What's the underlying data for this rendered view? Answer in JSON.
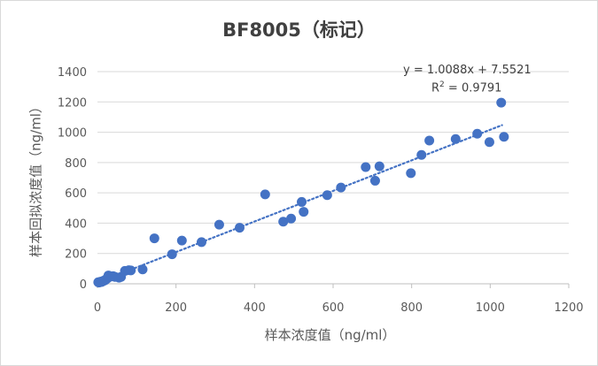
{
  "chart_data": {
    "type": "scatter",
    "title": "BF8005（标记）",
    "xlabel": "样本浓度值（ng/ml）",
    "ylabel": "样本回拟浓度值（ng/ml）",
    "xlim": [
      0,
      1200
    ],
    "ylim": [
      0,
      1400
    ],
    "xticks": [
      "0",
      "200",
      "400",
      "600",
      "800",
      "1000",
      "1200"
    ],
    "yticks": [
      "0",
      "200",
      "400",
      "600",
      "800",
      "1000",
      "1200",
      "1400"
    ],
    "grid": "horizontal",
    "point_color": "#4472c4",
    "trendline": {
      "slope": 1.0088,
      "intercept": 7.5521,
      "x_range": [
        0,
        1030
      ],
      "style": "dotted",
      "equation_label": "y = 1.0088x + 7.5521",
      "r2_prefix": "R",
      "r2_sup": "2",
      "r2_value": " = 0.9791"
    },
    "points": [
      {
        "x": 2,
        "y": 10
      },
      {
        "x": 4,
        "y": 8
      },
      {
        "x": 6,
        "y": 12
      },
      {
        "x": 8,
        "y": 14
      },
      {
        "x": 10,
        "y": 12
      },
      {
        "x": 12,
        "y": 15
      },
      {
        "x": 14,
        "y": 18
      },
      {
        "x": 16,
        "y": 20
      },
      {
        "x": 18,
        "y": 22
      },
      {
        "x": 20,
        "y": 25
      },
      {
        "x": 22,
        "y": 30
      },
      {
        "x": 25,
        "y": 35
      },
      {
        "x": 28,
        "y": 55
      },
      {
        "x": 30,
        "y": 45
      },
      {
        "x": 35,
        "y": 48
      },
      {
        "x": 40,
        "y": 50
      },
      {
        "x": 45,
        "y": 45
      },
      {
        "x": 55,
        "y": 40
      },
      {
        "x": 60,
        "y": 45
      },
      {
        "x": 70,
        "y": 85
      },
      {
        "x": 80,
        "y": 90
      },
      {
        "x": 85,
        "y": 88
      },
      {
        "x": 115,
        "y": 95
      },
      {
        "x": 145,
        "y": 300
      },
      {
        "x": 190,
        "y": 195
      },
      {
        "x": 215,
        "y": 285
      },
      {
        "x": 265,
        "y": 275
      },
      {
        "x": 310,
        "y": 390
      },
      {
        "x": 362,
        "y": 370
      },
      {
        "x": 427,
        "y": 590
      },
      {
        "x": 473,
        "y": 410
      },
      {
        "x": 493,
        "y": 430
      },
      {
        "x": 520,
        "y": 540
      },
      {
        "x": 525,
        "y": 475
      },
      {
        "x": 585,
        "y": 585
      },
      {
        "x": 620,
        "y": 635
      },
      {
        "x": 683,
        "y": 770
      },
      {
        "x": 707,
        "y": 680
      },
      {
        "x": 718,
        "y": 775
      },
      {
        "x": 798,
        "y": 730
      },
      {
        "x": 825,
        "y": 850
      },
      {
        "x": 845,
        "y": 945
      },
      {
        "x": 912,
        "y": 955
      },
      {
        "x": 967,
        "y": 990
      },
      {
        "x": 998,
        "y": 935
      },
      {
        "x": 1028,
        "y": 1195
      },
      {
        "x": 1035,
        "y": 970
      }
    ]
  }
}
